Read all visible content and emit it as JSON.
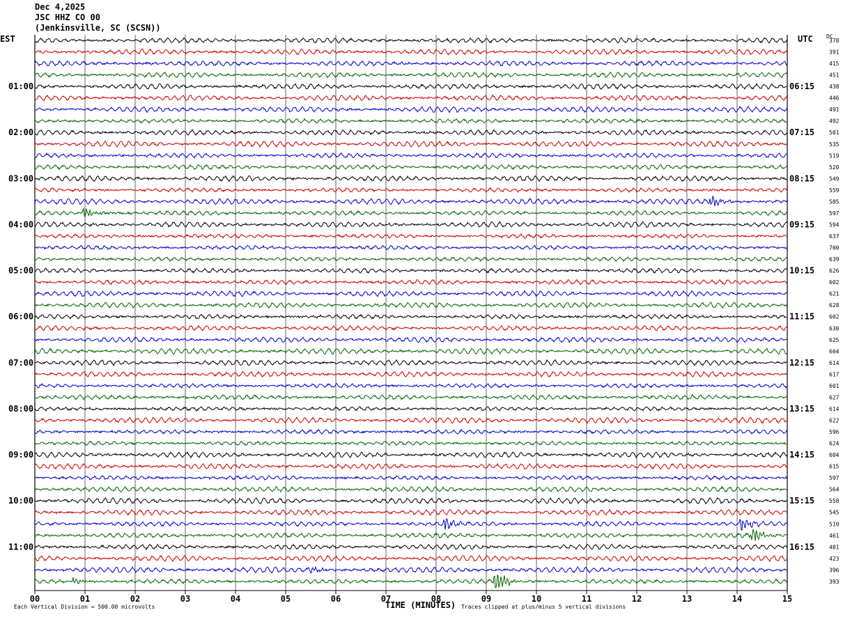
{
  "header": {
    "date": "Dec 4,2025",
    "station": "JSC HHZ CO 00",
    "location": "(Jenkinsville, SC (SCSN))"
  },
  "labels": {
    "left_zone": "EST",
    "right_zone": "UTC",
    "dc": "DC",
    "xlabel": "TIME (MINUTES)",
    "scale_note": "Each Vertical Division =  500.00 microvolts",
    "clip_note": "Traces clipped at plus/minus 5 vertical divisions"
  },
  "colors": {
    "cycle": [
      "#000000",
      "#cc0000",
      "#0000cc",
      "#006400"
    ],
    "grid": "#000000"
  },
  "chart_data": {
    "type": "line",
    "title": "",
    "xlabel": "TIME (MINUTES)",
    "xlim": [
      0,
      15
    ],
    "x_ticks": [
      "00",
      "01",
      "02",
      "03",
      "04",
      "05",
      "06",
      "07",
      "08",
      "09",
      "10",
      "11",
      "12",
      "13",
      "14",
      "15"
    ],
    "left_time_labels": [
      "01:00",
      "02:00",
      "03:00",
      "04:00",
      "05:00",
      "06:00",
      "07:00",
      "08:00",
      "09:00",
      "10:00",
      "11:00"
    ],
    "right_time_labels": [
      "06:15",
      "07:15",
      "08:15",
      "09:15",
      "10:15",
      "11:15",
      "12:15",
      "13:15",
      "14:15",
      "15:15",
      "16:15"
    ],
    "dc_offsets": [
      "378",
      "391",
      "415",
      "451",
      "438",
      "446",
      "491",
      "492",
      "501",
      "535",
      "519",
      "520",
      "549",
      "559",
      "585",
      "597",
      "594",
      "637",
      "700",
      "639",
      "626",
      "602",
      "621",
      "628",
      "602",
      "630",
      "625",
      "604",
      "614",
      "617",
      "601",
      "627",
      "614",
      "622",
      "596",
      "624",
      "604",
      "615",
      "597",
      "564",
      "558",
      "545",
      "519",
      "461",
      "481",
      "423",
      "396",
      "393"
    ],
    "trace_count": 48,
    "events": [
      {
        "trace": 14,
        "minute": 13.5,
        "amplitude": 2
      },
      {
        "trace": 15,
        "minute": 1.0,
        "amplitude": 2
      },
      {
        "trace": 42,
        "minute": 8.2,
        "amplitude": 2.5
      },
      {
        "trace": 42,
        "minute": 14.1,
        "amplitude": 3
      },
      {
        "trace": 43,
        "minute": 14.3,
        "amplitude": 3
      },
      {
        "trace": 46,
        "minute": 5.5,
        "amplitude": 1.5
      },
      {
        "trace": 47,
        "minute": 9.2,
        "amplitude": 5
      },
      {
        "trace": 47,
        "minute": 0.8,
        "amplitude": 1.5
      }
    ]
  }
}
